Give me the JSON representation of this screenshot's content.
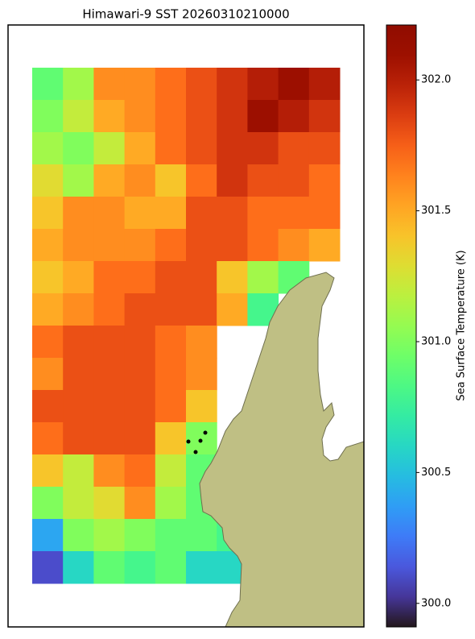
{
  "chart_data": {
    "type": "heatmap",
    "title": "Himawari-9 SST 20260310210000",
    "colormap": "turbo",
    "colorbar_label": "Sea Surface Temperature (K)",
    "clim": [
      299.91,
      302.21
    ],
    "cticks": [
      {
        "value": 300,
        "label": "300.0"
      },
      {
        "value": 300.5,
        "label": "300.5"
      },
      {
        "value": 301,
        "label": "301.0"
      },
      {
        "value": 301.5,
        "label": "301.5"
      },
      {
        "value": 302,
        "label": "302.0"
      }
    ],
    "values": [
      [
        300.9,
        301.1,
        301.6,
        301.6,
        301.7,
        301.8,
        301.9,
        302.0,
        302.1,
        302.0
      ],
      [
        301.0,
        301.2,
        301.5,
        301.6,
        301.7,
        301.8,
        301.9,
        302.1,
        302.0,
        301.9
      ],
      [
        301.1,
        301.0,
        301.2,
        301.5,
        301.7,
        301.8,
        301.9,
        301.9,
        301.8,
        301.8
      ],
      [
        301.3,
        301.1,
        301.5,
        301.6,
        301.4,
        301.7,
        301.9,
        301.8,
        301.8,
        301.7
      ],
      [
        301.4,
        301.6,
        301.6,
        301.5,
        301.5,
        301.8,
        301.8,
        301.7,
        301.7,
        301.7
      ],
      [
        301.5,
        301.6,
        301.6,
        301.6,
        301.7,
        301.8,
        301.8,
        301.7,
        301.6,
        301.5
      ],
      [
        301.4,
        301.5,
        301.7,
        301.7,
        301.8,
        301.8,
        301.4,
        301.1,
        300.9,
        null
      ],
      [
        301.5,
        301.6,
        301.7,
        301.8,
        301.8,
        301.8,
        301.5,
        300.8,
        null,
        null
      ],
      [
        301.7,
        301.8,
        301.8,
        301.8,
        301.7,
        301.6,
        null,
        null,
        null,
        null
      ],
      [
        301.6,
        301.8,
        301.8,
        301.8,
        301.7,
        301.6,
        null,
        null,
        null,
        null
      ],
      [
        301.8,
        301.8,
        301.8,
        301.8,
        301.7,
        301.4,
        null,
        null,
        null,
        null
      ],
      [
        301.7,
        301.8,
        301.8,
        301.8,
        301.4,
        301.0,
        null,
        null,
        null,
        null
      ],
      [
        301.4,
        301.2,
        301.6,
        301.7,
        301.2,
        300.9,
        null,
        null,
        null,
        null
      ],
      [
        301.0,
        301.2,
        301.3,
        301.6,
        301.1,
        300.9,
        null,
        null,
        null,
        null
      ],
      [
        300.4,
        301.0,
        301.1,
        301.0,
        300.9,
        300.9,
        300.8,
        null,
        null,
        null
      ],
      [
        300.1,
        300.6,
        300.9,
        300.8,
        300.9,
        300.6,
        300.6,
        null,
        null,
        null
      ]
    ]
  }
}
